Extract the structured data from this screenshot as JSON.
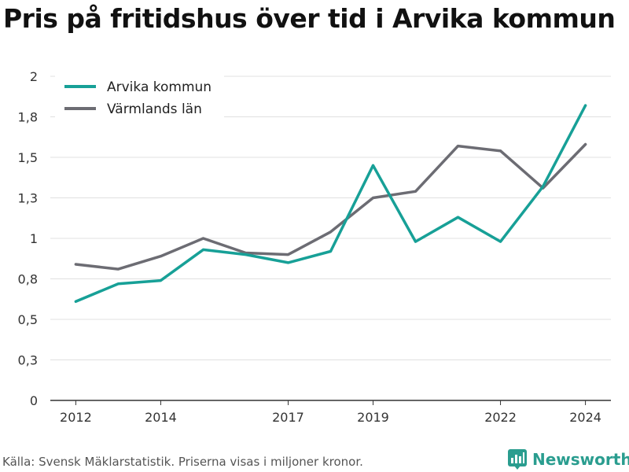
{
  "title": "Pris på fritidshus över tid i Arvika kommun",
  "source": "Källa: Svensk Mäklarstatistik. Priserna visas i miljoner kronor.",
  "brand": "Newsworthy",
  "colors": {
    "arvika": "#17a097",
    "varmland": "#6c6c73",
    "grid": "#e0e0e0",
    "brand": "#2a9d8f"
  },
  "chart_data": {
    "type": "line",
    "title": "Pris på fritidshus över tid i Arvika kommun",
    "xlabel": "",
    "ylabel": "",
    "x": [
      2012,
      2013,
      2014,
      2015,
      2016,
      2017,
      2018,
      2019,
      2020,
      2021,
      2022,
      2023,
      2024
    ],
    "xticks": [
      2012,
      2014,
      2017,
      2019,
      2022,
      2024
    ],
    "yticks": [
      {
        "value": 0,
        "label": "0"
      },
      {
        "value": 0.25,
        "label": "0,3"
      },
      {
        "value": 0.5,
        "label": "0,5"
      },
      {
        "value": 0.75,
        "label": "0,8"
      },
      {
        "value": 1,
        "label": "1"
      },
      {
        "value": 1.25,
        "label": "1,3"
      },
      {
        "value": 1.5,
        "label": "1,5"
      },
      {
        "value": 1.75,
        "label": "1,8"
      },
      {
        "value": 2,
        "label": "2"
      }
    ],
    "ylim": [
      0,
      2
    ],
    "grid": true,
    "legend_position": "top-left",
    "series": [
      {
        "name": "Arvika kommun",
        "color": "#17a097",
        "values": [
          0.61,
          0.72,
          0.74,
          0.93,
          0.9,
          0.85,
          0.92,
          1.45,
          0.98,
          1.13,
          0.98,
          1.32,
          1.82
        ]
      },
      {
        "name": "Värmlands län",
        "color": "#6c6c73",
        "values": [
          0.84,
          0.81,
          0.89,
          1.0,
          0.91,
          0.9,
          1.04,
          1.25,
          1.29,
          1.57,
          1.54,
          1.31,
          1.58
        ]
      }
    ]
  }
}
